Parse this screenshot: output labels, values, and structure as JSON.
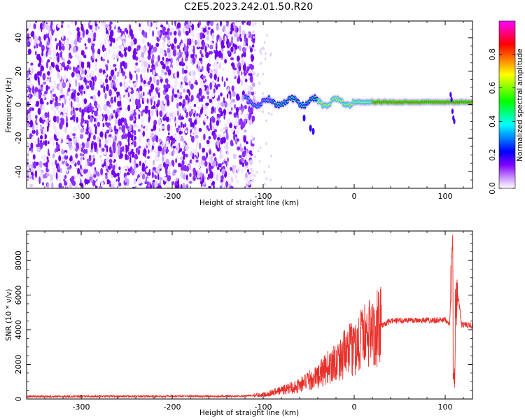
{
  "figure": {
    "title": "C2E5.2023.242.01.50.R20"
  },
  "chart_data": [
    {
      "type": "heatmap",
      "title": "C2E5.2023.242.01.50.R20",
      "xlabel": "Height of straight line (km)",
      "ylabel": "Frequency (Hz)",
      "xlim": [
        -360,
        130
      ],
      "ylim": [
        -50,
        50
      ],
      "x_ticks": [
        -300,
        -200,
        -100,
        0,
        100
      ],
      "x_tick_labels": [
        "-300",
        "-200",
        "-100",
        "0",
        "100"
      ],
      "y_ticks": [
        -40,
        -20,
        0,
        20,
        40
      ],
      "y_tick_labels": [
        "-40",
        "-20",
        "0",
        "20",
        "40"
      ],
      "colorbar": {
        "label": "Normalized spectral amplitude",
        "range": [
          0,
          1
        ],
        "ticks": [
          0.0,
          0.2,
          0.4,
          0.6,
          0.8
        ],
        "tick_labels": [
          "0.0",
          "0.2",
          "0.4",
          "0.6",
          "0.8"
        ],
        "colors": [
          "#ffffff",
          "#cc99ff",
          "#8000ff",
          "#0000ff",
          "#00ffff",
          "#00ff00",
          "#ffff00",
          "#ff0000",
          "#ff00ff"
        ]
      },
      "description_values": {
        "noise_region_end_km": -120,
        "signal_center_freq_hz": 1.5
      }
    },
    {
      "type": "line",
      "xlabel": "Height of straight line (km)",
      "ylabel": "SNR (10 * v/v)",
      "xlim": [
        -360,
        130
      ],
      "ylim": [
        0,
        9700
      ],
      "x_ticks": [
        -300,
        -200,
        -100,
        0,
        100
      ],
      "x_tick_labels": [
        "-300",
        "-200",
        "-100",
        "0",
        "100"
      ],
      "y_ticks": [
        0,
        2000,
        4000,
        6000,
        8000
      ],
      "y_tick_labels": [
        "0",
        "2000",
        "4000",
        "6000",
        "8000"
      ],
      "color": "#e8302b",
      "series_envelope": {
        "x": [
          -360,
          -300,
          -200,
          -120,
          -100,
          -80,
          -60,
          -40,
          -25,
          -10,
          0,
          10,
          20,
          30,
          40,
          60,
          80,
          100,
          105,
          108,
          110,
          113,
          118,
          130
        ],
        "y": [
          150,
          150,
          160,
          170,
          250,
          500,
          800,
          1300,
          2000,
          2600,
          3000,
          3500,
          3900,
          4250,
          4500,
          4550,
          4550,
          4550,
          4400,
          8500,
          1200,
          6500,
          4300,
          4250
        ]
      }
    }
  ]
}
